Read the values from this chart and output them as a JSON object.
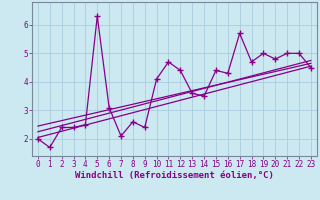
{
  "x": [
    0,
    1,
    2,
    3,
    4,
    5,
    6,
    7,
    8,
    9,
    10,
    11,
    12,
    13,
    14,
    15,
    16,
    17,
    18,
    19,
    20,
    21,
    22,
    23
  ],
  "y_main": [
    2.0,
    1.7,
    2.4,
    2.4,
    2.5,
    6.3,
    3.1,
    2.1,
    2.6,
    2.4,
    4.1,
    4.7,
    4.4,
    3.6,
    3.5,
    4.4,
    4.3,
    5.7,
    4.7,
    5.0,
    4.8,
    5.0,
    5.0,
    4.5
  ],
  "trend1_x": [
    0,
    23
  ],
  "trend1_y": [
    2.05,
    4.55
  ],
  "trend2_x": [
    0,
    23
  ],
  "trend2_y": [
    2.25,
    4.75
  ],
  "trend3_x": [
    0,
    23
  ],
  "trend3_y": [
    2.45,
    4.65
  ],
  "xlim": [
    -0.5,
    23.5
  ],
  "ylim": [
    1.4,
    6.8
  ],
  "yticks": [
    2,
    3,
    4,
    5,
    6
  ],
  "xticks": [
    0,
    1,
    2,
    3,
    4,
    5,
    6,
    7,
    8,
    9,
    10,
    11,
    12,
    13,
    14,
    15,
    16,
    17,
    18,
    19,
    20,
    21,
    22,
    23
  ],
  "xlabel": "Windchill (Refroidissement éolien,°C)",
  "line_color": "#880088",
  "bg_color": "#cce8f0",
  "grid_color": "#aaccdd",
  "tick_fontsize": 5.5,
  "xlabel_fontsize": 6.5
}
